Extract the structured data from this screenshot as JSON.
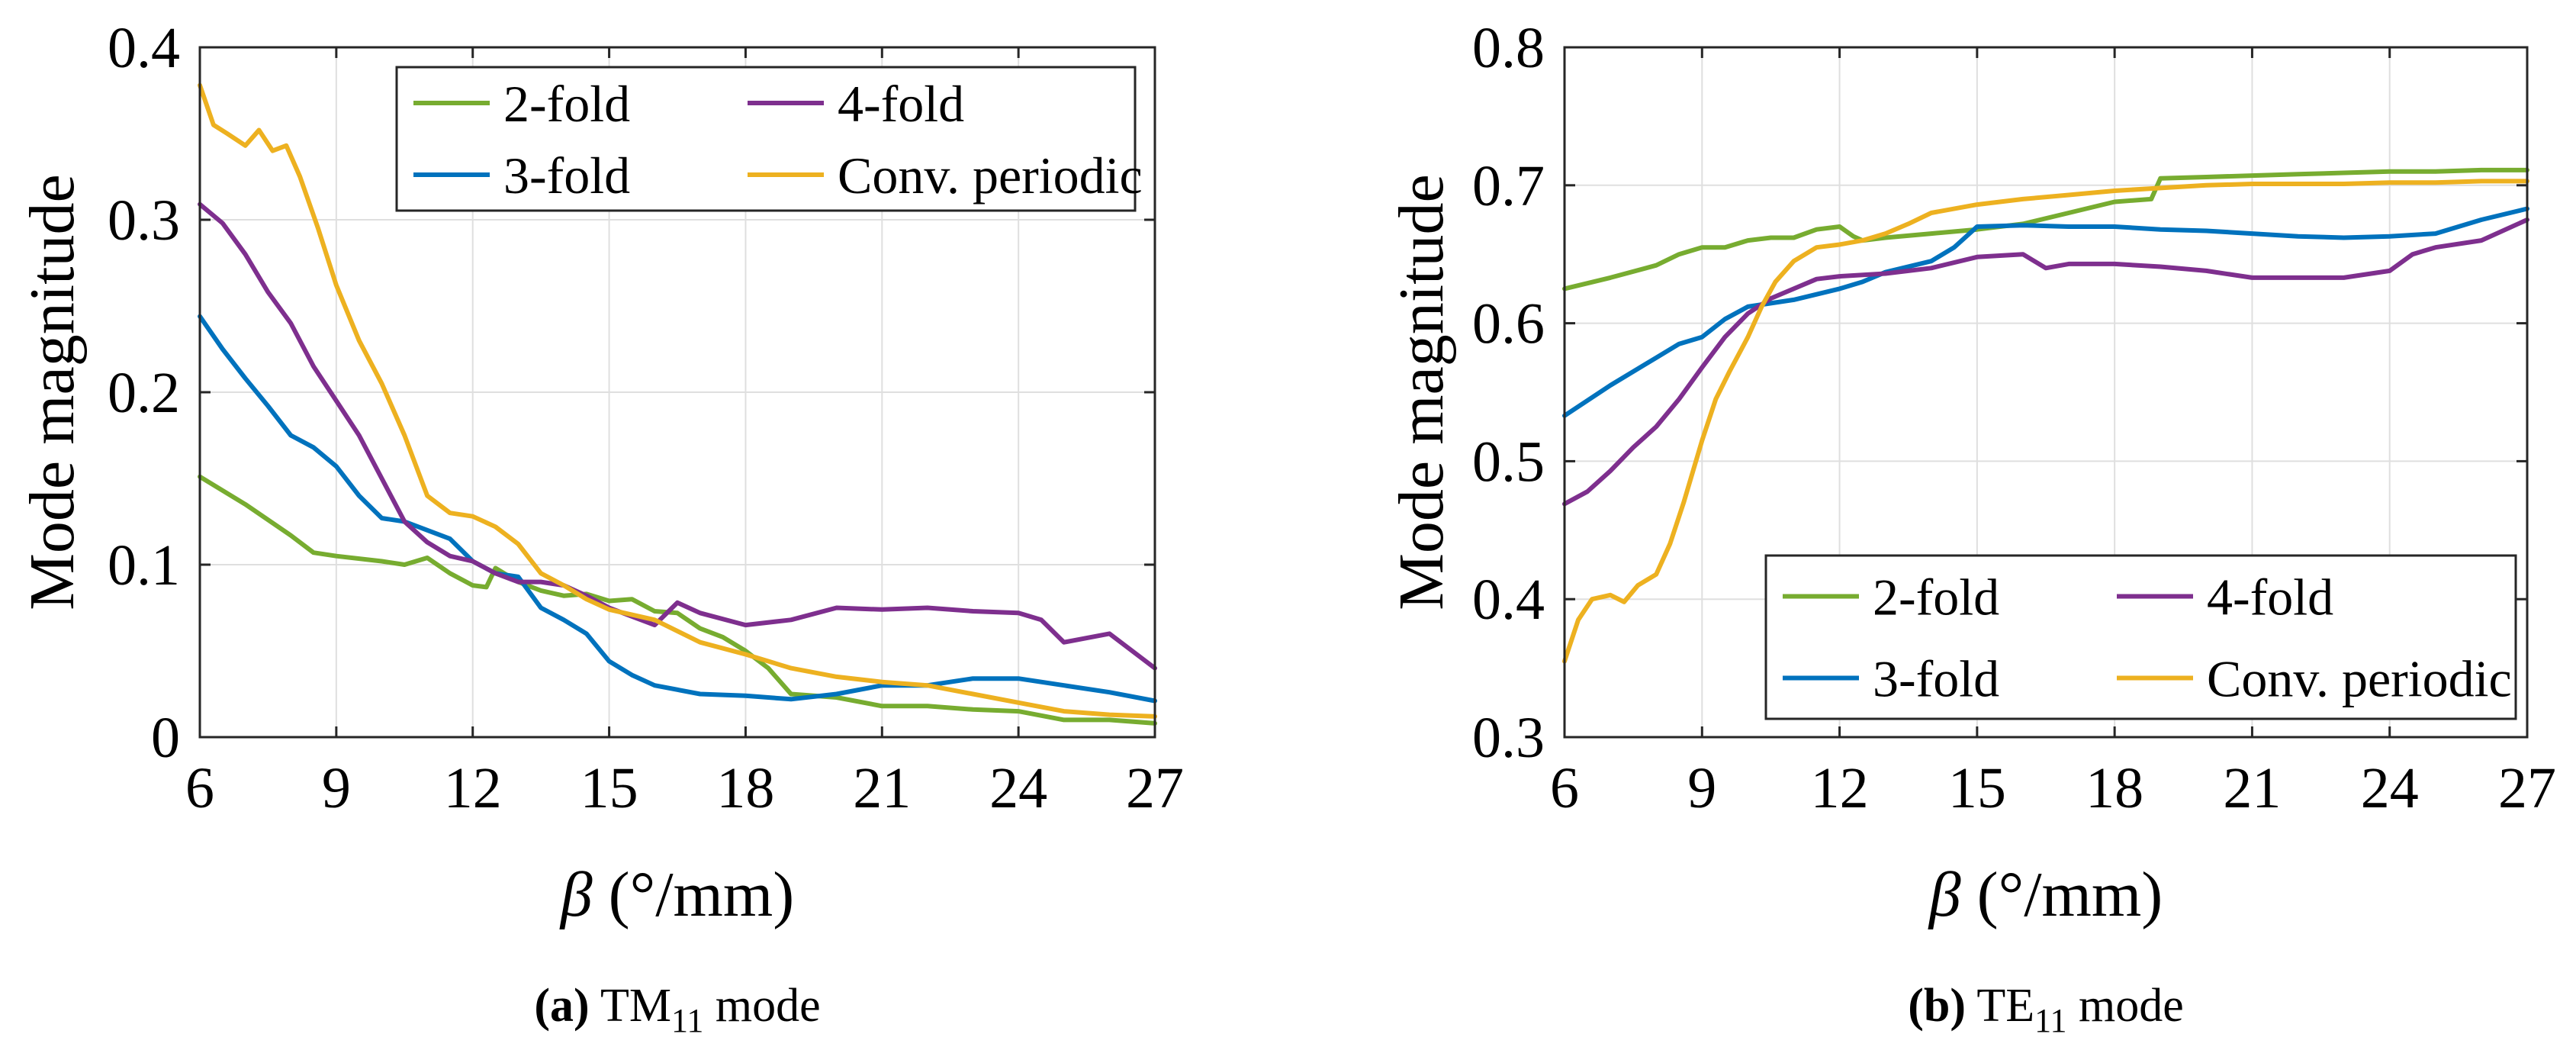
{
  "chart_data": [
    {
      "type": "line",
      "panel": "a",
      "caption_label": "(a)",
      "caption_main": "TM",
      "caption_sub": "11",
      "caption_rest": " mode",
      "xlabel_symbol": "β",
      "xlabel_unit": " (°/mm)",
      "ylabel": "Mode magnitude",
      "xlim": [
        6,
        27
      ],
      "ylim": [
        0,
        0.4
      ],
      "xticks": [
        6,
        9,
        12,
        15,
        18,
        21,
        24,
        27
      ],
      "yticks": [
        0,
        0.1,
        0.2,
        0.3,
        0.4
      ],
      "ytick_labels": [
        "0",
        "0.1",
        "0.2",
        "0.3",
        "0.4"
      ],
      "legend_position": "top-right",
      "series": [
        {
          "name": "2-fold",
          "color": "#77ac30",
          "x": [
            6,
            7,
            8,
            8.5,
            9,
            10,
            10.5,
            11,
            11.5,
            12,
            12.3,
            12.5,
            13,
            13.5,
            14,
            14.5,
            15,
            15.5,
            16,
            16.5,
            17,
            17.5,
            18,
            18.5,
            19,
            20,
            21,
            22,
            23,
            24,
            25,
            26,
            27
          ],
          "values": [
            0.151,
            0.135,
            0.117,
            0.107,
            0.105,
            0.102,
            0.1,
            0.104,
            0.095,
            0.088,
            0.087,
            0.098,
            0.09,
            0.085,
            0.082,
            0.083,
            0.079,
            0.08,
            0.073,
            0.072,
            0.063,
            0.058,
            0.05,
            0.04,
            0.025,
            0.023,
            0.018,
            0.018,
            0.016,
            0.015,
            0.01,
            0.01,
            0.008
          ]
        },
        {
          "name": "3-fold",
          "color": "#0072bd",
          "x": [
            6,
            6.5,
            7,
            7.5,
            8,
            8.5,
            9,
            9.5,
            10,
            10.5,
            11,
            11.5,
            12,
            12.5,
            13,
            13.5,
            14,
            14.5,
            15,
            15.5,
            16,
            17,
            18,
            19,
            20,
            21,
            22,
            23,
            24,
            25,
            26,
            27
          ],
          "values": [
            0.244,
            0.225,
            0.208,
            0.192,
            0.175,
            0.168,
            0.157,
            0.14,
            0.127,
            0.125,
            0.12,
            0.115,
            0.102,
            0.095,
            0.093,
            0.075,
            0.068,
            0.06,
            0.044,
            0.036,
            0.03,
            0.025,
            0.024,
            0.022,
            0.025,
            0.03,
            0.03,
            0.034,
            0.034,
            0.03,
            0.026,
            0.021
          ]
        },
        {
          "name": "4-fold",
          "color": "#7e2f8e",
          "x": [
            6,
            6.5,
            7,
            7.5,
            8,
            8.5,
            9,
            9.5,
            10,
            10.5,
            11,
            11.5,
            12,
            12.5,
            13,
            13.5,
            14,
            14.5,
            15,
            15.5,
            16,
            16.5,
            17,
            18,
            19,
            20,
            21,
            22,
            23,
            24,
            24.5,
            25,
            26,
            27
          ],
          "values": [
            0.309,
            0.298,
            0.28,
            0.258,
            0.24,
            0.215,
            0.195,
            0.175,
            0.15,
            0.125,
            0.113,
            0.105,
            0.102,
            0.095,
            0.09,
            0.09,
            0.088,
            0.082,
            0.075,
            0.07,
            0.065,
            0.078,
            0.072,
            0.065,
            0.068,
            0.075,
            0.074,
            0.075,
            0.073,
            0.072,
            0.068,
            0.055,
            0.06,
            0.04
          ]
        },
        {
          "name": "Conv. periodic",
          "color": "#edb120",
          "x": [
            6,
            6.3,
            6.6,
            7,
            7.3,
            7.6,
            7.9,
            8.2,
            8.6,
            9,
            9.5,
            10,
            10.5,
            11,
            11.5,
            12,
            12.5,
            13,
            13.5,
            14,
            14.5,
            15,
            16,
            17,
            18,
            19,
            20,
            21,
            22,
            23,
            24,
            25,
            26,
            27
          ],
          "values": [
            0.378,
            0.355,
            0.35,
            0.343,
            0.352,
            0.34,
            0.343,
            0.325,
            0.295,
            0.262,
            0.23,
            0.205,
            0.175,
            0.14,
            0.13,
            0.128,
            0.122,
            0.112,
            0.095,
            0.088,
            0.08,
            0.074,
            0.068,
            0.055,
            0.048,
            0.04,
            0.035,
            0.032,
            0.03,
            0.025,
            0.02,
            0.015,
            0.013,
            0.012
          ]
        }
      ]
    },
    {
      "type": "line",
      "panel": "b",
      "caption_label": "(b)",
      "caption_main": "TE",
      "caption_sub": "11",
      "caption_rest": " mode",
      "xlabel_symbol": "β",
      "xlabel_unit": " (°/mm)",
      "ylabel": "Mode magnitude",
      "xlim": [
        6,
        27
      ],
      "ylim": [
        0.3,
        0.8
      ],
      "xticks": [
        6,
        9,
        12,
        15,
        18,
        21,
        24,
        27
      ],
      "yticks": [
        0.3,
        0.4,
        0.5,
        0.6,
        0.7,
        0.8
      ],
      "ytick_labels": [
        "0.3",
        "0.4",
        "0.5",
        "0.6",
        "0.7",
        "0.8"
      ],
      "legend_position": "bottom-right",
      "series": [
        {
          "name": "2-fold",
          "color": "#77ac30",
          "x": [
            6,
            7,
            8,
            8.5,
            9,
            9.5,
            10,
            10.5,
            11,
            11.5,
            12,
            12.3,
            12.5,
            13,
            14,
            15,
            16,
            17,
            18,
            18.8,
            19,
            20,
            21,
            22,
            23,
            24,
            25,
            26,
            27
          ],
          "values": [
            0.625,
            0.633,
            0.642,
            0.65,
            0.655,
            0.655,
            0.66,
            0.662,
            0.662,
            0.668,
            0.67,
            0.663,
            0.66,
            0.662,
            0.665,
            0.668,
            0.672,
            0.68,
            0.688,
            0.69,
            0.705,
            0.706,
            0.707,
            0.708,
            0.709,
            0.71,
            0.71,
            0.711,
            0.711
          ]
        },
        {
          "name": "3-fold",
          "color": "#0072bd",
          "x": [
            6,
            7,
            8,
            8.5,
            9,
            9.5,
            10,
            11,
            12,
            12.5,
            13,
            14,
            14.5,
            15,
            16,
            17,
            18,
            19,
            20,
            21,
            22,
            23,
            24,
            25,
            26,
            27
          ],
          "values": [
            0.533,
            0.555,
            0.575,
            0.585,
            0.59,
            0.603,
            0.612,
            0.617,
            0.625,
            0.63,
            0.637,
            0.645,
            0.655,
            0.67,
            0.671,
            0.67,
            0.67,
            0.668,
            0.667,
            0.665,
            0.663,
            0.662,
            0.663,
            0.665,
            0.675,
            0.683
          ]
        },
        {
          "name": "4-fold",
          "color": "#7e2f8e",
          "x": [
            6,
            6.5,
            7,
            7.5,
            8,
            8.5,
            9,
            9.5,
            10,
            10.5,
            11,
            11.5,
            12,
            13,
            14,
            15,
            16,
            16.5,
            17,
            18,
            19,
            20,
            21,
            22,
            23,
            24,
            24.5,
            25,
            26,
            27
          ],
          "values": [
            0.469,
            0.478,
            0.493,
            0.51,
            0.525,
            0.545,
            0.568,
            0.59,
            0.607,
            0.618,
            0.625,
            0.632,
            0.634,
            0.636,
            0.64,
            0.648,
            0.65,
            0.64,
            0.643,
            0.643,
            0.641,
            0.638,
            0.633,
            0.633,
            0.633,
            0.638,
            0.65,
            0.655,
            0.66,
            0.675
          ]
        },
        {
          "name": "Conv. periodic",
          "color": "#edb120",
          "x": [
            6,
            6.3,
            6.6,
            7,
            7.3,
            7.6,
            8,
            8.3,
            8.6,
            9,
            9.3,
            9.6,
            10,
            10.3,
            10.6,
            11,
            11.5,
            12,
            12.5,
            13,
            13.5,
            14,
            15,
            16,
            17,
            18,
            19,
            20,
            21,
            22,
            23,
            24,
            25,
            26,
            27
          ],
          "values": [
            0.355,
            0.385,
            0.4,
            0.403,
            0.398,
            0.41,
            0.418,
            0.44,
            0.47,
            0.515,
            0.545,
            0.565,
            0.59,
            0.612,
            0.63,
            0.645,
            0.655,
            0.657,
            0.66,
            0.665,
            0.672,
            0.68,
            0.686,
            0.69,
            0.693,
            0.696,
            0.698,
            0.7,
            0.701,
            0.701,
            0.701,
            0.702,
            0.702,
            0.703,
            0.703
          ]
        }
      ]
    }
  ]
}
